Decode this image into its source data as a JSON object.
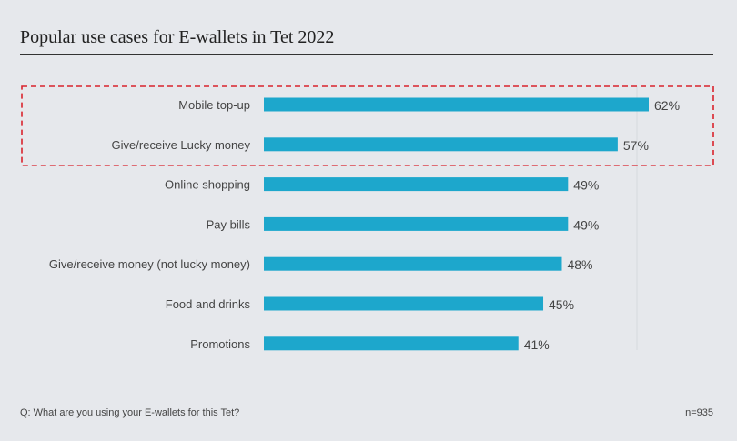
{
  "chart_data": {
    "type": "bar",
    "orientation": "horizontal",
    "title": "Popular use cases for E-wallets in Tet 2022",
    "categories": [
      "Mobile top-up",
      "Give/receive Lucky money",
      "Online shopping",
      "Pay bills",
      "Give/receive money (not lucky money)",
      "Food and drinks",
      "Promotions"
    ],
    "values": [
      62,
      57,
      49,
      49,
      48,
      45,
      41
    ],
    "value_labels": [
      "62%",
      "57%",
      "49%",
      "49%",
      "48%",
      "45%",
      "41%"
    ],
    "xlim": [
      0,
      100
    ],
    "highlighted": [
      "Mobile top-up",
      "Give/receive Lucky money"
    ],
    "bar_color": "#1da7cc",
    "highlight_color": "#d9232d"
  },
  "footer": {
    "question": "Q: What are you using your E-wallets for this Tet?",
    "sample": "n=935"
  }
}
